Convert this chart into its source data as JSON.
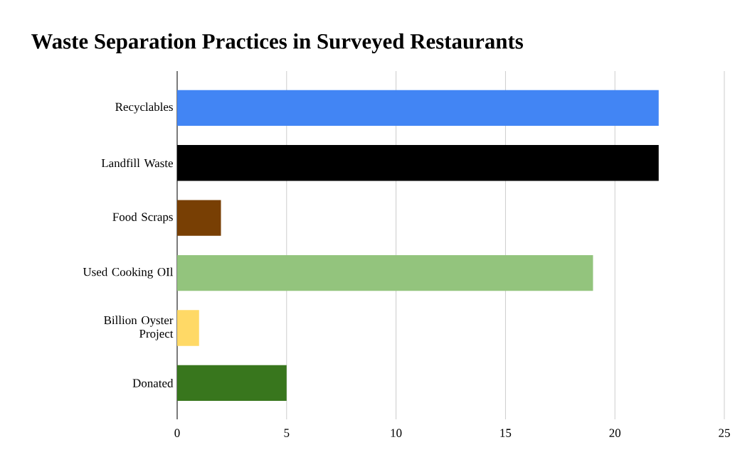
{
  "chart_data": {
    "type": "bar",
    "orientation": "horizontal",
    "title": "Waste Separation Practices in Surveyed Restaurants",
    "categories": [
      "Recyclables",
      "Landfill Waste",
      "Food Scraps",
      "Used Cooking OIl",
      "Billion Oyster Project",
      "Donated"
    ],
    "values": [
      22,
      22,
      2,
      19,
      1,
      5
    ],
    "colors": [
      "#4285f4",
      "#000000",
      "#783f04",
      "#93c47d",
      "#ffd966",
      "#38761d"
    ],
    "xlim": [
      0,
      25
    ],
    "xticks": [
      0,
      5,
      10,
      15,
      20,
      25
    ],
    "grid": "x"
  }
}
